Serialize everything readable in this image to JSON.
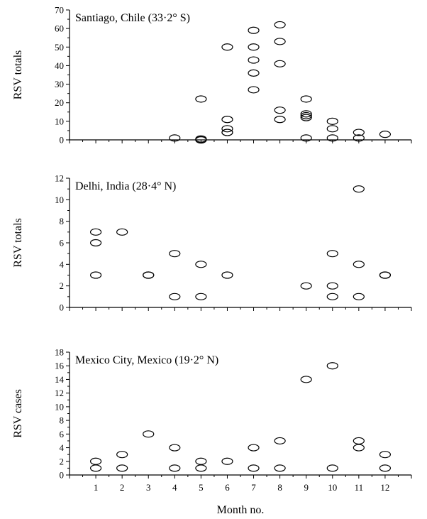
{
  "chart_data": [
    {
      "type": "scatter",
      "title": "Santiago, Chile (33·2° S)",
      "ylabel": "RSV totals",
      "ylim": [
        0,
        70
      ],
      "yticks": [
        0,
        10,
        20,
        30,
        40,
        50,
        60,
        70
      ],
      "xlim": [
        0,
        13
      ],
      "show_x_tick_labels": false,
      "points": [
        {
          "x": 4,
          "y": 1
        },
        {
          "x": 5,
          "y": 22
        },
        {
          "x": 5,
          "y": 0.5
        },
        {
          "x": 5,
          "y": 0
        },
        {
          "x": 5,
          "y": 0
        },
        {
          "x": 6,
          "y": 50
        },
        {
          "x": 6,
          "y": 11
        },
        {
          "x": 6,
          "y": 6
        },
        {
          "x": 6,
          "y": 4
        },
        {
          "x": 6,
          "y": 4
        },
        {
          "x": 7,
          "y": 59
        },
        {
          "x": 7,
          "y": 50
        },
        {
          "x": 7,
          "y": 43
        },
        {
          "x": 7,
          "y": 36
        },
        {
          "x": 7,
          "y": 27
        },
        {
          "x": 8,
          "y": 62
        },
        {
          "x": 8,
          "y": 53
        },
        {
          "x": 8,
          "y": 41
        },
        {
          "x": 8,
          "y": 16
        },
        {
          "x": 8,
          "y": 11
        },
        {
          "x": 9,
          "y": 22
        },
        {
          "x": 9,
          "y": 14
        },
        {
          "x": 9,
          "y": 13
        },
        {
          "x": 9,
          "y": 12
        },
        {
          "x": 9,
          "y": 1
        },
        {
          "x": 10,
          "y": 10
        },
        {
          "x": 10,
          "y": 6
        },
        {
          "x": 10,
          "y": 1
        },
        {
          "x": 11,
          "y": 4
        },
        {
          "x": 11,
          "y": 1
        },
        {
          "x": 12,
          "y": 3
        }
      ]
    },
    {
      "type": "scatter",
      "title": "Delhi, India (28·4° N)",
      "ylabel": "RSV totals",
      "ylim": [
        0,
        12
      ],
      "yticks": [
        0,
        2,
        4,
        6,
        8,
        10,
        12
      ],
      "xlim": [
        0,
        13
      ],
      "show_x_tick_labels": false,
      "points": [
        {
          "x": 1,
          "y": 7
        },
        {
          "x": 1,
          "y": 6
        },
        {
          "x": 1,
          "y": 3
        },
        {
          "x": 2,
          "y": 7
        },
        {
          "x": 3,
          "y": 3
        },
        {
          "x": 3,
          "y": 3
        },
        {
          "x": 4,
          "y": 5
        },
        {
          "x": 4,
          "y": 1
        },
        {
          "x": 5,
          "y": 4
        },
        {
          "x": 5,
          "y": 1
        },
        {
          "x": 6,
          "y": 3
        },
        {
          "x": 9,
          "y": 2
        },
        {
          "x": 10,
          "y": 5
        },
        {
          "x": 10,
          "y": 2
        },
        {
          "x": 10,
          "y": 1
        },
        {
          "x": 11,
          "y": 11
        },
        {
          "x": 11,
          "y": 4
        },
        {
          "x": 11,
          "y": 1
        },
        {
          "x": 12,
          "y": 3
        },
        {
          "x": 12,
          "y": 3
        }
      ]
    },
    {
      "type": "scatter",
      "title": "Mexico City, Mexico (19·2° N)",
      "ylabel": "RSV cases",
      "xlabel": "Month no.",
      "ylim": [
        0,
        18
      ],
      "yticks": [
        0,
        2,
        4,
        6,
        8,
        10,
        12,
        14,
        16,
        18
      ],
      "xlim": [
        0,
        13
      ],
      "xticks": [
        1,
        2,
        3,
        4,
        5,
        6,
        7,
        8,
        9,
        10,
        11,
        12
      ],
      "show_x_tick_labels": true,
      "points": [
        {
          "x": 1,
          "y": 2
        },
        {
          "x": 1,
          "y": 1
        },
        {
          "x": 2,
          "y": 3
        },
        {
          "x": 2,
          "y": 1
        },
        {
          "x": 3,
          "y": 6
        },
        {
          "x": 4,
          "y": 4
        },
        {
          "x": 4,
          "y": 1
        },
        {
          "x": 5,
          "y": 2
        },
        {
          "x": 5,
          "y": 1
        },
        {
          "x": 6,
          "y": 2
        },
        {
          "x": 7,
          "y": 4
        },
        {
          "x": 7,
          "y": 1
        },
        {
          "x": 8,
          "y": 5
        },
        {
          "x": 8,
          "y": 1
        },
        {
          "x": 9,
          "y": 14
        },
        {
          "x": 10,
          "y": 16
        },
        {
          "x": 10,
          "y": 1
        },
        {
          "x": 11,
          "y": 5
        },
        {
          "x": 11,
          "y": 4
        },
        {
          "x": 12,
          "y": 3
        },
        {
          "x": 12,
          "y": 1
        }
      ]
    }
  ]
}
